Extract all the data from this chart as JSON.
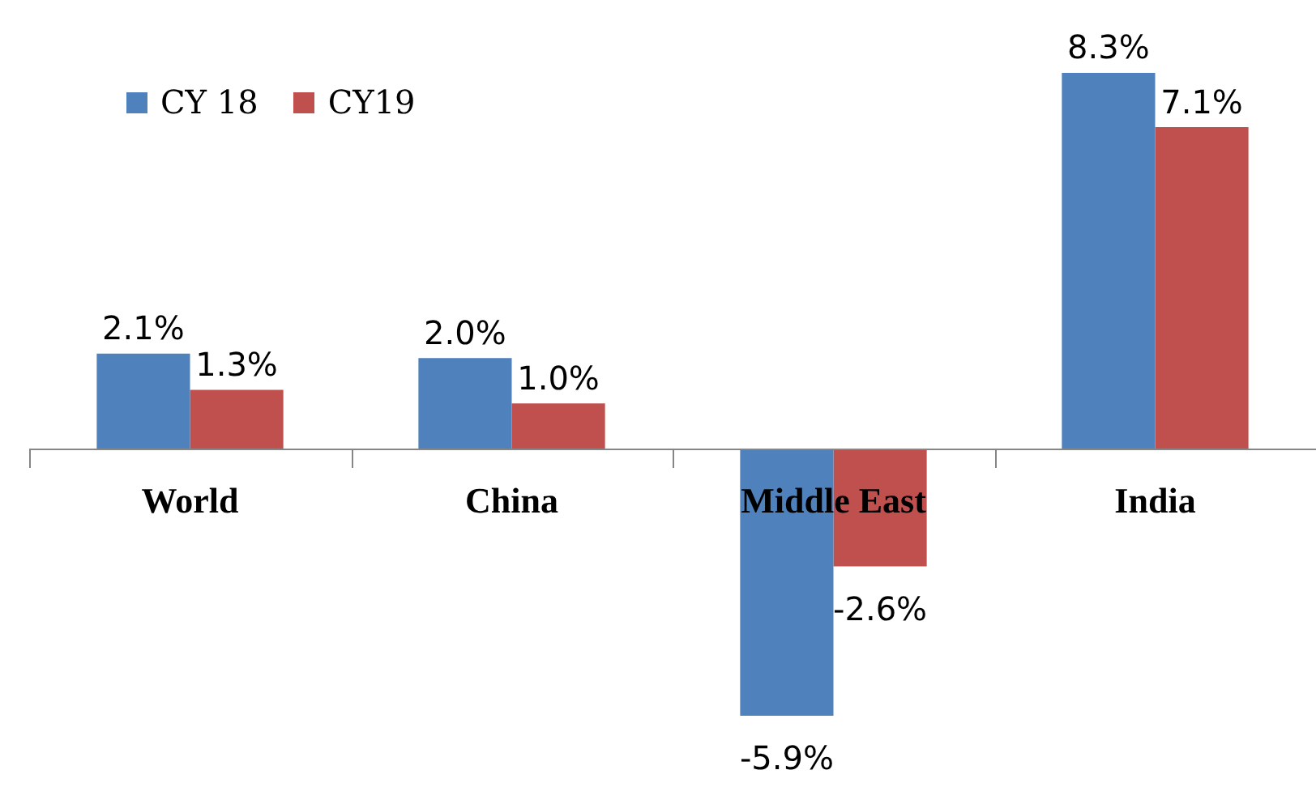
{
  "chart_data": {
    "type": "bar",
    "categories": [
      "World",
      "China",
      "Middle East",
      "India"
    ],
    "series": [
      {
        "name": "CY 18",
        "color": "#4f81bd",
        "values": [
          2.1,
          2.0,
          -5.9,
          8.3
        ],
        "value_labels": [
          "2.1%",
          "2.0%",
          "-5.9%",
          "8.3%"
        ]
      },
      {
        "name": "CY19",
        "color": "#c0504d",
        "values": [
          1.3,
          1.0,
          -2.6,
          7.1
        ],
        "value_labels": [
          "1.3%",
          "1.0%",
          "-2.6%",
          "7.1%"
        ]
      }
    ],
    "tick_labels": "x",
    "legend": "top left"
  }
}
